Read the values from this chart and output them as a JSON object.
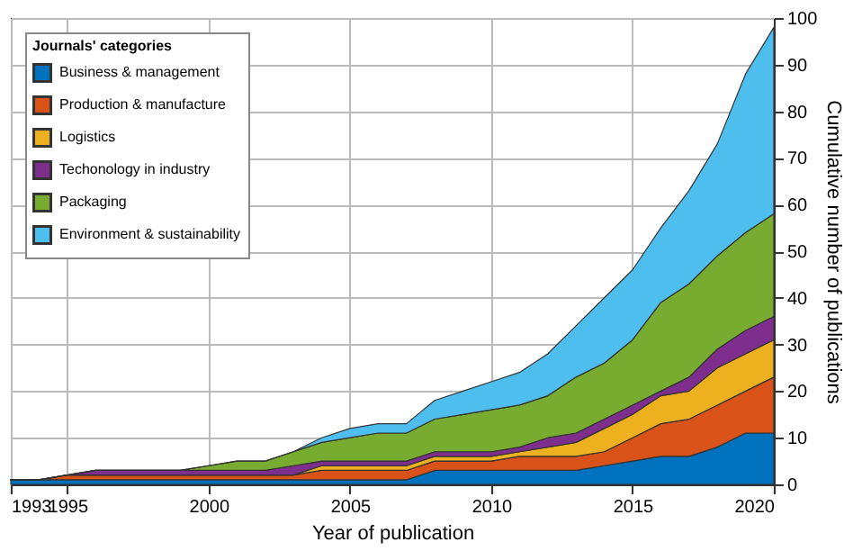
{
  "chart_data": {
    "type": "area",
    "stacked": true,
    "xlabel": "Year of publication",
    "y2label": "Cumulative number of publications",
    "legend_title": "Journals' categories",
    "legend": "top left",
    "grid": true,
    "x": [
      1993,
      1994,
      1995,
      1996,
      1997,
      1998,
      1999,
      2000,
      2001,
      2002,
      2003,
      2004,
      2005,
      2006,
      2007,
      2008,
      2009,
      2010,
      2011,
      2012,
      2013,
      2014,
      2015,
      2016,
      2017,
      2018,
      2019,
      2020
    ],
    "xlim": [
      1993,
      2020
    ],
    "xticks": [
      1993,
      1995,
      2000,
      2005,
      2010,
      2015,
      2020
    ],
    "y2lim": [
      0,
      100
    ],
    "y2ticks": [
      0,
      10,
      20,
      30,
      40,
      50,
      60,
      70,
      80,
      90,
      100
    ],
    "series": [
      {
        "name": "Business & management",
        "color": "#0072bd",
        "axis": "y2",
        "values": [
          1,
          1,
          1,
          1,
          1,
          1,
          1,
          1,
          1,
          1,
          1,
          1,
          1,
          1,
          1,
          3,
          3,
          3,
          3,
          3,
          3,
          4,
          5,
          6,
          6,
          8,
          11,
          11
        ]
      },
      {
        "name": "Production & manufacture",
        "color": "#d95319",
        "axis": "y2",
        "values": [
          0,
          0,
          1,
          1,
          1,
          1,
          1,
          1,
          1,
          1,
          1,
          2,
          2,
          2,
          2,
          2,
          2,
          2,
          3,
          3,
          3,
          3,
          5,
          7,
          8,
          9,
          9,
          12
        ]
      },
      {
        "name": "Logistics",
        "color": "#edb120",
        "axis": "y2",
        "values": [
          0,
          0,
          0,
          0,
          0,
          0,
          0,
          0,
          0,
          0,
          0,
          1,
          1,
          1,
          1,
          1,
          1,
          1,
          1,
          2,
          3,
          5,
          5,
          6,
          6,
          8,
          8,
          8
        ]
      },
      {
        "name": "Techonology in industry",
        "color": "#7e2f8e",
        "axis": "y2",
        "values": [
          0,
          0,
          0,
          1,
          1,
          1,
          1,
          1,
          1,
          1,
          2,
          1,
          1,
          1,
          1,
          1,
          1,
          1,
          1,
          2,
          2,
          2,
          2,
          1,
          3,
          4,
          5,
          5
        ]
      },
      {
        "name": "Packaging",
        "color": "#77ac30",
        "axis": "y2",
        "values": [
          0,
          0,
          0,
          0,
          0,
          0,
          0,
          1,
          2,
          2,
          3,
          4,
          5,
          6,
          6,
          7,
          8,
          9,
          9,
          9,
          12,
          12,
          14,
          19,
          20,
          20,
          21,
          22
        ]
      },
      {
        "name": "Environment & sustainability",
        "color": "#4dbeee",
        "axis": "y2",
        "values": [
          0,
          0,
          0,
          0,
          0,
          0,
          0,
          0,
          0,
          0,
          0,
          1,
          2,
          2,
          2,
          4,
          5,
          6,
          7,
          9,
          11,
          14,
          15,
          16,
          20,
          24,
          34,
          40
        ]
      }
    ]
  }
}
